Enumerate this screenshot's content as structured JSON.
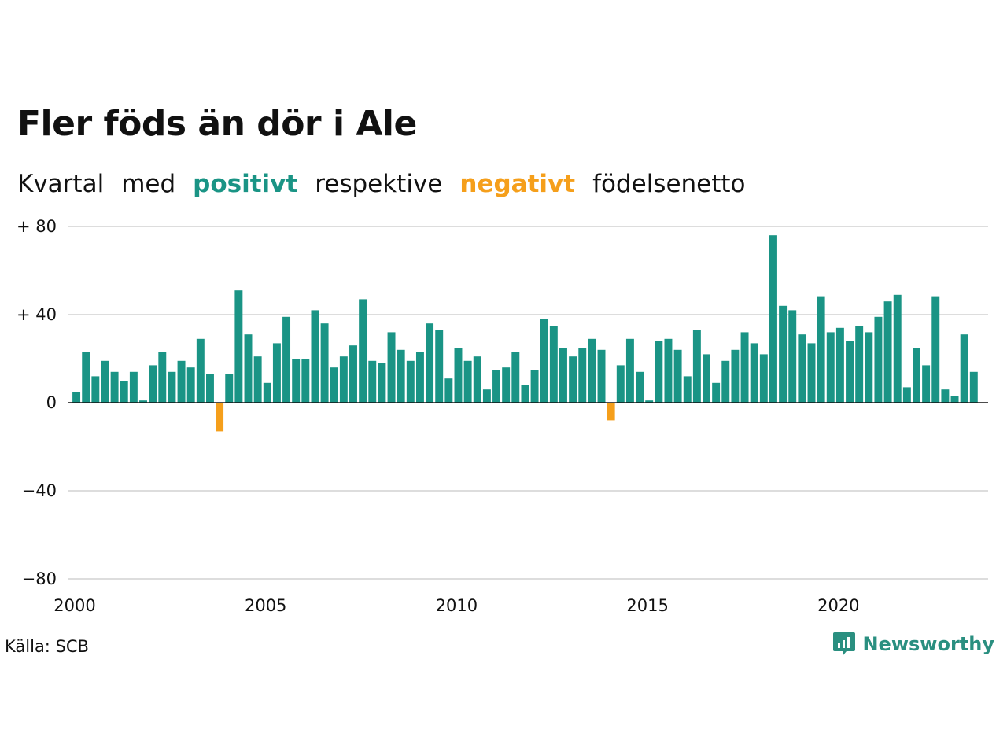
{
  "title": "Fler föds än dör i Ale",
  "subtitle": {
    "w1": "Kvartal",
    "w2": "med",
    "positive": "positivt",
    "w3": "respektive",
    "negative": "negativt",
    "w4": "födelsenetto"
  },
  "source": "Källa: SCB",
  "brand": "Newsworthy",
  "colors": {
    "positive": "#1a9485",
    "negative": "#f59f1b",
    "grid": "#dddddd"
  },
  "chart_data": {
    "type": "bar",
    "x_start": 2000,
    "x_step": 0.25,
    "xlim": [
      2000,
      2024
    ],
    "ylim": [
      -80,
      80
    ],
    "y_ticks": [
      80,
      40,
      0,
      -40,
      -80
    ],
    "y_tick_labels": [
      "+ 80",
      "+ 40",
      "0",
      "−40",
      "−80"
    ],
    "x_ticks": [
      2000,
      2005,
      2010,
      2015,
      2020
    ],
    "x_tick_labels": [
      "2000",
      "2005",
      "2010",
      "2015",
      "2020"
    ],
    "grid": true,
    "values": [
      5,
      23,
      12,
      19,
      14,
      10,
      14,
      1,
      17,
      23,
      14,
      19,
      16,
      29,
      13,
      -13,
      13,
      51,
      31,
      21,
      9,
      27,
      39,
      20,
      20,
      42,
      36,
      16,
      21,
      26,
      47,
      19,
      18,
      32,
      24,
      19,
      23,
      36,
      33,
      11,
      25,
      19,
      21,
      6,
      15,
      16,
      23,
      8,
      15,
      38,
      35,
      25,
      21,
      25,
      29,
      24,
      -8,
      17,
      29,
      14,
      1,
      28,
      29,
      24,
      12,
      33,
      22,
      9,
      19,
      24,
      32,
      27,
      22,
      76,
      44,
      42,
      31,
      27,
      48,
      32,
      34,
      28,
      35,
      32,
      39,
      46,
      49,
      7,
      25,
      17,
      48,
      6,
      3,
      31,
      14
    ]
  }
}
